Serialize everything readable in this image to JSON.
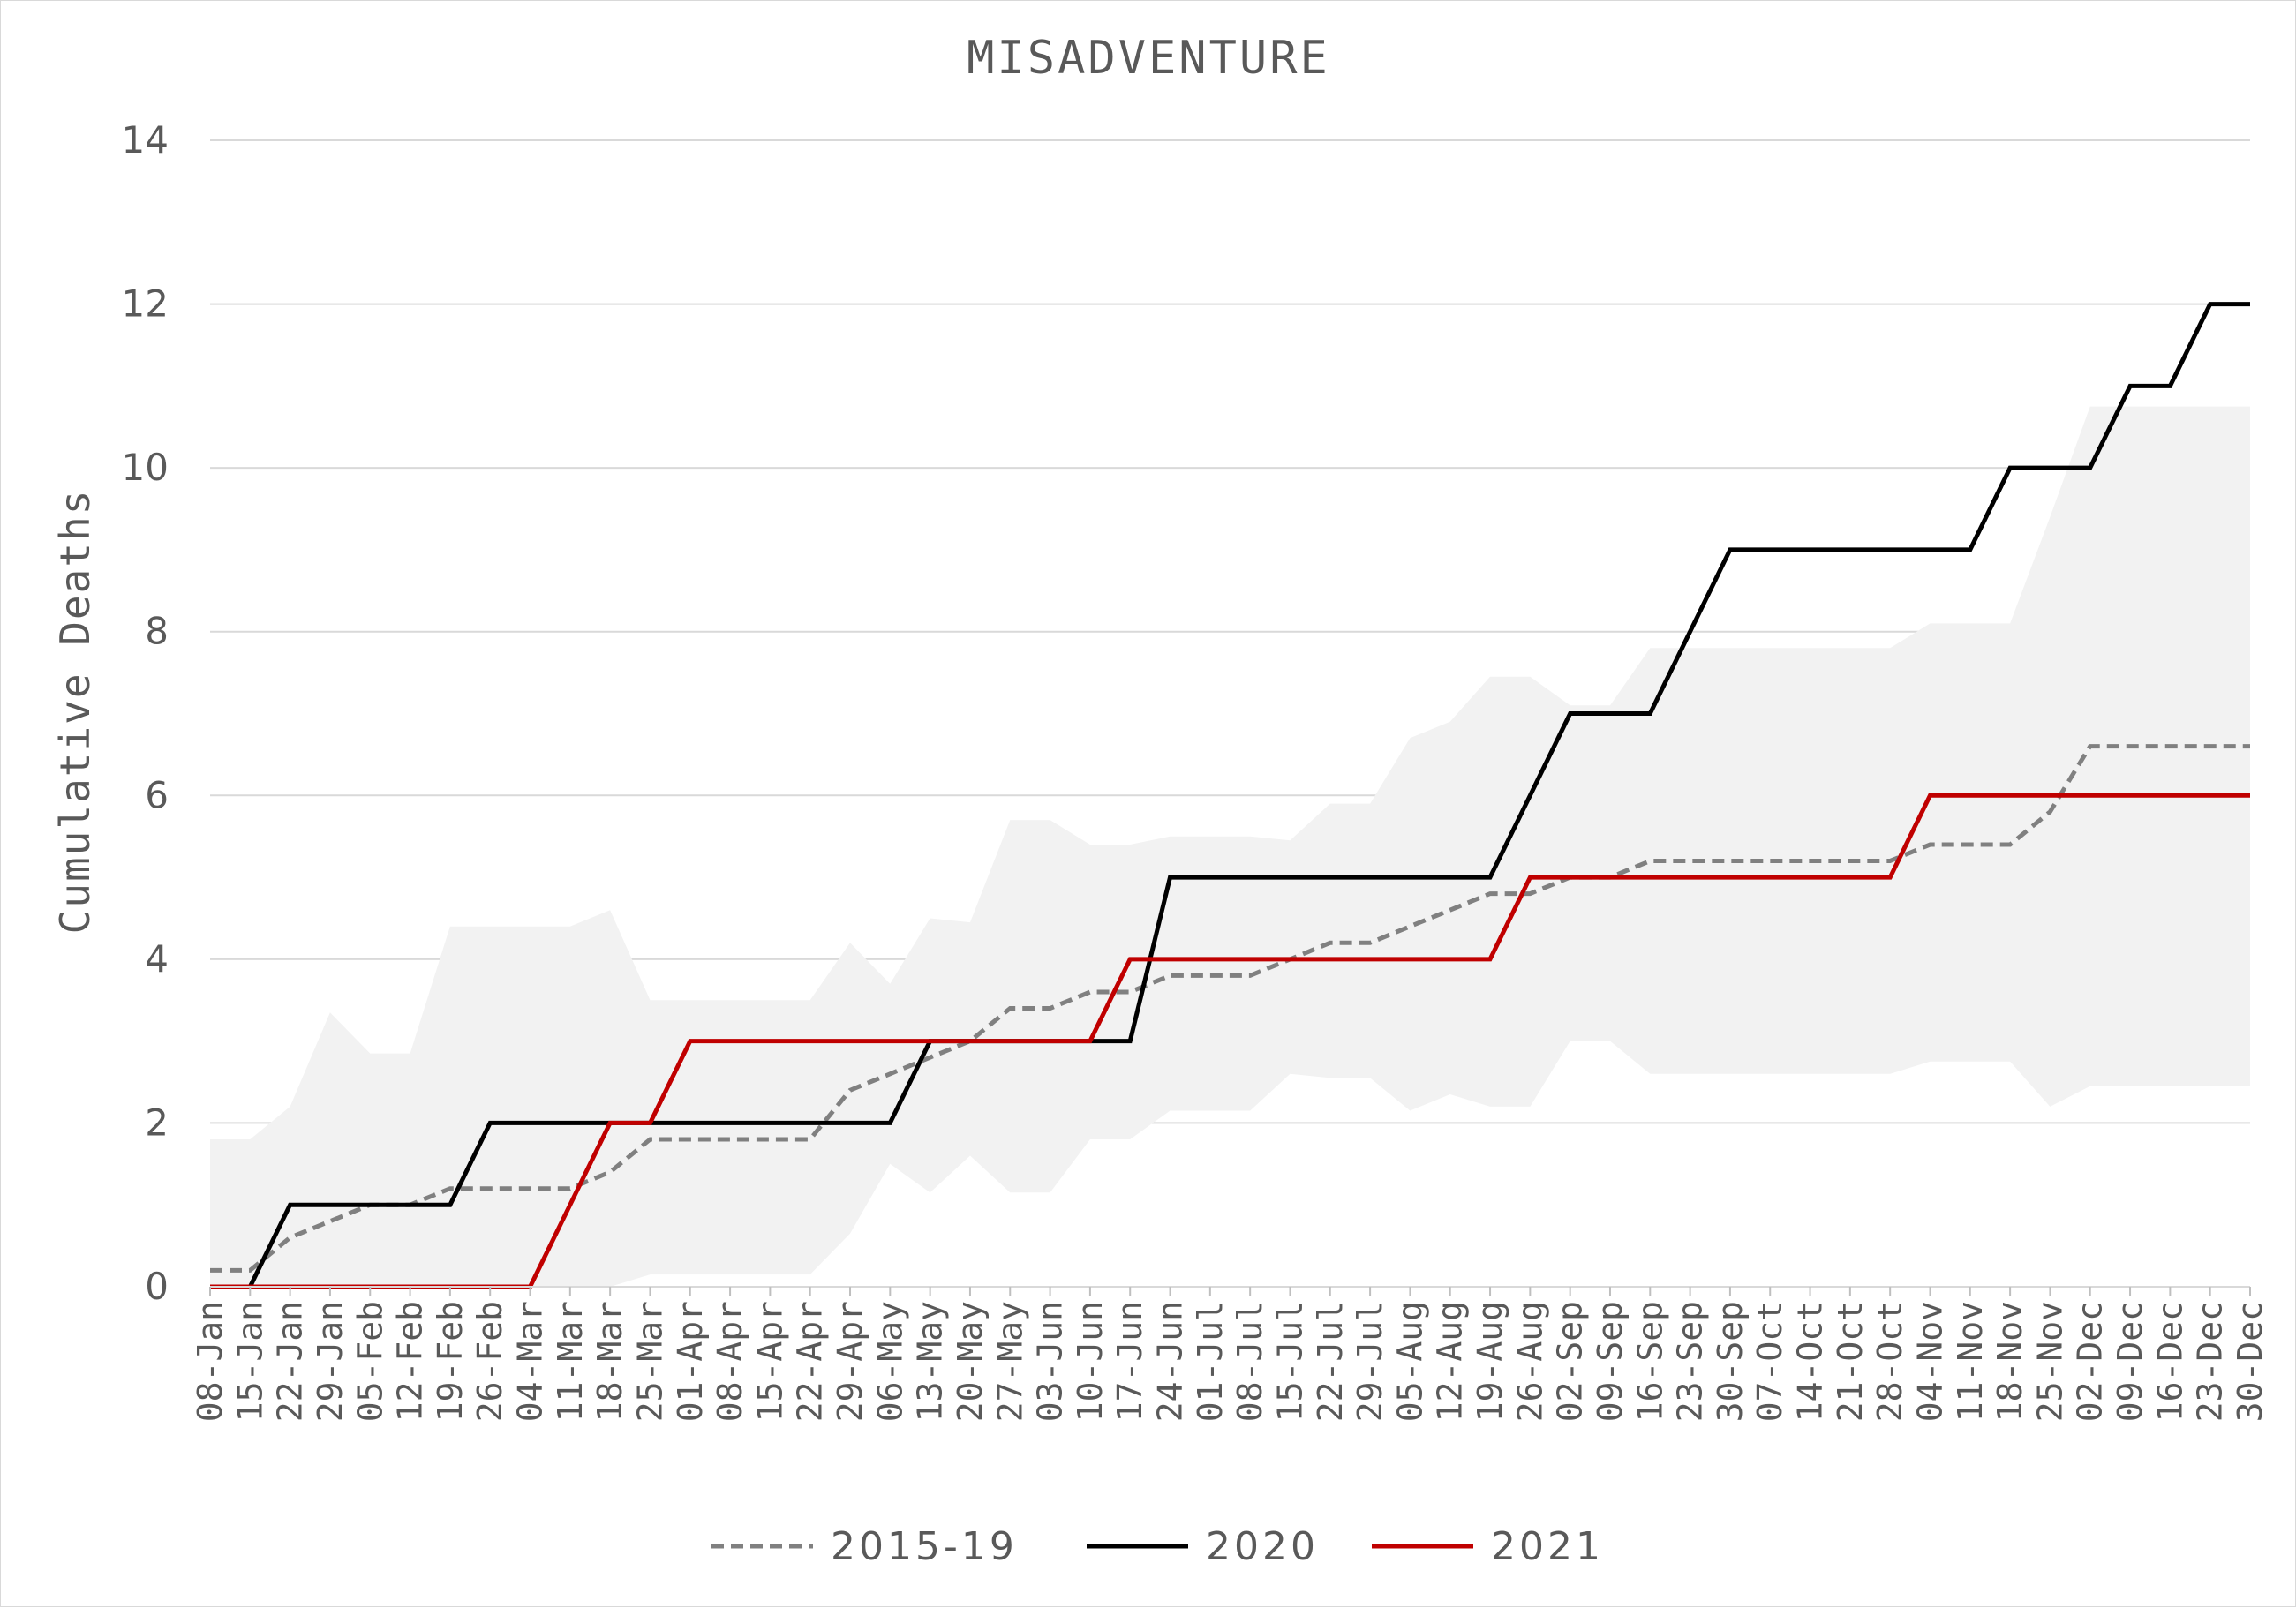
{
  "chart_data": {
    "type": "line",
    "title": "MISADVENTURE",
    "xlabel": "",
    "ylabel": "Cumulative Deaths",
    "ylim": [
      0,
      14
    ],
    "yticks": [
      0,
      2,
      4,
      6,
      8,
      10,
      12,
      14
    ],
    "grid": true,
    "legend_position": "bottom",
    "categories": [
      "08-Jan",
      "15-Jan",
      "22-Jan",
      "29-Jan",
      "05-Feb",
      "12-Feb",
      "19-Feb",
      "26-Feb",
      "04-Mar",
      "11-Mar",
      "18-Mar",
      "25-Mar",
      "01-Apr",
      "08-Apr",
      "15-Apr",
      "22-Apr",
      "29-Apr",
      "06-May",
      "13-May",
      "20-May",
      "27-May",
      "03-Jun",
      "10-Jun",
      "17-Jun",
      "24-Jun",
      "01-Jul",
      "08-Jul",
      "15-Jul",
      "22-Jul",
      "29-Jul",
      "05-Aug",
      "12-Aug",
      "19-Aug",
      "26-Aug",
      "02-Sep",
      "09-Sep",
      "16-Sep",
      "23-Sep",
      "30-Sep",
      "07-Oct",
      "14-Oct",
      "21-Oct",
      "28-Oct",
      "04-Nov",
      "11-Nov",
      "18-Nov",
      "25-Nov",
      "02-Dec",
      "09-Dec",
      "16-Dec",
      "23-Dec",
      "30-Dec"
    ],
    "range_band": {
      "color": "#f2f2f2",
      "upper": [
        1.8,
        1.8,
        2.2,
        3.35,
        2.85,
        2.85,
        4.4,
        4.4,
        4.4,
        4.4,
        4.6,
        3.5,
        3.5,
        3.5,
        3.5,
        3.5,
        4.2,
        3.7,
        4.5,
        4.45,
        5.7,
        5.7,
        5.4,
        5.4,
        5.5,
        5.5,
        5.5,
        5.45,
        5.9,
        5.9,
        6.7,
        6.9,
        7.45,
        7.45,
        7.1,
        7.1,
        7.8,
        7.8,
        7.8,
        7.8,
        7.8,
        7.8,
        7.8,
        8.1,
        8.1,
        8.1,
        9.4,
        10.75,
        10.75,
        10.75,
        10.75,
        10.75
      ],
      "lower": [
        0,
        0,
        0,
        0,
        0,
        0,
        0,
        0,
        0,
        0,
        0,
        0.15,
        0.15,
        0.15,
        0.15,
        0.15,
        0.65,
        1.5,
        1.15,
        1.6,
        1.15,
        1.15,
        1.8,
        1.8,
        2.15,
        2.15,
        2.15,
        2.6,
        2.55,
        2.55,
        2.15,
        2.35,
        2.2,
        2.2,
        3.0,
        3.0,
        2.6,
        2.6,
        2.6,
        2.6,
        2.6,
        2.6,
        2.6,
        2.75,
        2.75,
        2.75,
        2.2,
        2.45,
        2.45,
        2.45,
        2.45,
        2.45
      ]
    },
    "series": [
      {
        "name": "2015-19",
        "color": "#808080",
        "dash": true,
        "values": [
          0.2,
          0.2,
          0.6,
          0.8,
          1.0,
          1.0,
          1.2,
          1.2,
          1.2,
          1.2,
          1.4,
          1.8,
          1.8,
          1.8,
          1.8,
          1.8,
          2.4,
          2.6,
          2.8,
          3.0,
          3.4,
          3.4,
          3.6,
          3.6,
          3.8,
          3.8,
          3.8,
          4.0,
          4.2,
          4.2,
          4.4,
          4.6,
          4.8,
          4.8,
          5.0,
          5.0,
          5.2,
          5.2,
          5.2,
          5.2,
          5.2,
          5.2,
          5.2,
          5.4,
          5.4,
          5.4,
          5.8,
          6.6,
          6.6,
          6.6,
          6.6,
          6.6
        ]
      },
      {
        "name": "2020",
        "color": "#000000",
        "dash": false,
        "values": [
          0,
          0,
          1,
          1,
          1,
          1,
          1,
          2,
          2,
          2,
          2,
          2,
          2,
          2,
          2,
          2,
          2,
          2,
          3,
          3,
          3,
          3,
          3,
          3,
          5,
          5,
          5,
          5,
          5,
          5,
          5,
          5,
          5,
          6,
          7,
          7,
          7,
          8,
          9,
          9,
          9,
          9,
          9,
          9,
          9,
          10,
          10,
          10,
          11,
          11,
          12,
          12
        ]
      },
      {
        "name": "2021",
        "color": "#c00000",
        "dash": false,
        "values": [
          0,
          0,
          0,
          0,
          0,
          0,
          0,
          0,
          0,
          1,
          2,
          2,
          3,
          3,
          3,
          3,
          3,
          3,
          3,
          3,
          3,
          3,
          3,
          4,
          4,
          4,
          4,
          4,
          4,
          4,
          4,
          4,
          4,
          5,
          5,
          5,
          5,
          5,
          5,
          5,
          5,
          5,
          5,
          6,
          6,
          6,
          6,
          6,
          6,
          6,
          6,
          6
        ]
      }
    ]
  }
}
